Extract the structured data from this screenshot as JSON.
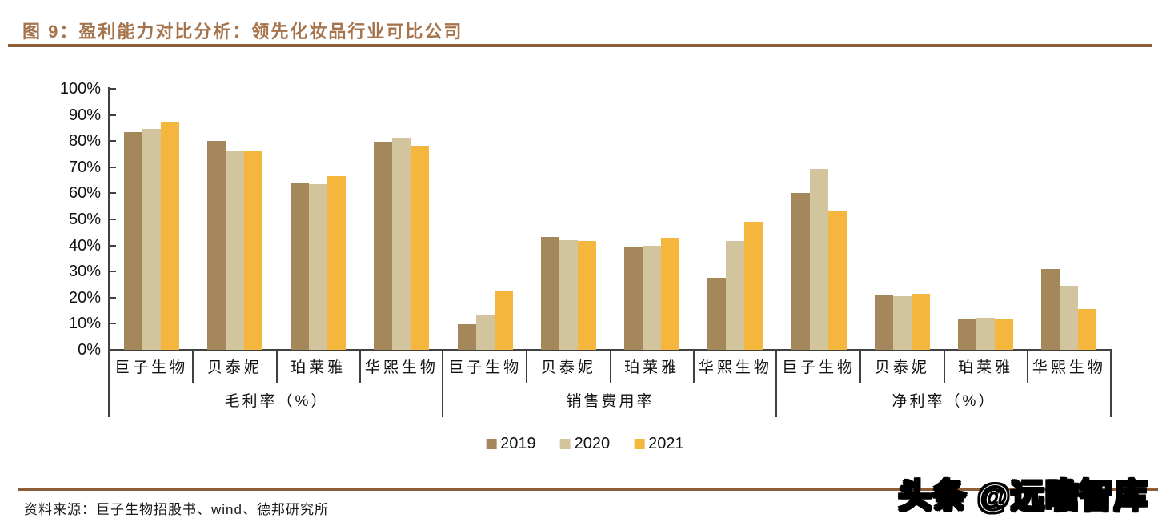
{
  "figure": {
    "title": "图 9：盈利能力对比分析：领先化妆品行业可比公司",
    "source": "资料来源：巨子生物招股书、wind、德邦研究所",
    "watermark": "头条 @远瞻智库"
  },
  "colors": {
    "title_brown": "#A6744C",
    "rule_brown": "#8C5F38",
    "axis_gray": "#404040",
    "text_black": "#111111",
    "series_2019": "#A5875C",
    "series_2020": "#D2C49D",
    "series_2021": "#F4B63C"
  },
  "chart_data": {
    "type": "bar",
    "title": "",
    "xlabel": "",
    "ylabel": "",
    "ylim": [
      0,
      100
    ],
    "yticks": [
      0,
      10,
      20,
      30,
      40,
      50,
      60,
      70,
      80,
      90,
      100
    ],
    "ytick_suffix": "%",
    "grid": false,
    "legend_position": "bottom",
    "group_labels": [
      "毛利率（%）",
      "销售费用率",
      "净利率（%）"
    ],
    "categories": [
      "巨子生物",
      "贝泰妮",
      "珀莱雅",
      "华熙生物"
    ],
    "series": [
      {
        "name": "2019",
        "color": "#A5875C",
        "values_by_group": [
          [
            83.3,
            80.2,
            64.0,
            79.7
          ],
          [
            9.8,
            43.4,
            39.2,
            27.6
          ],
          [
            60.1,
            21.2,
            12.0,
            31.0
          ]
        ]
      },
      {
        "name": "2020",
        "color": "#D2C49D",
        "values_by_group": [
          [
            84.6,
            76.3,
            63.5,
            81.4
          ],
          [
            13.3,
            42.0,
            40.0,
            41.7
          ],
          [
            69.4,
            20.6,
            12.2,
            24.5
          ]
        ]
      },
      {
        "name": "2021",
        "color": "#F4B63C",
        "values_by_group": [
          [
            87.2,
            76.0,
            66.5,
            78.1
          ],
          [
            22.3,
            41.8,
            42.9,
            49.2
          ],
          [
            53.3,
            21.5,
            12.1,
            15.7
          ]
        ]
      }
    ]
  }
}
